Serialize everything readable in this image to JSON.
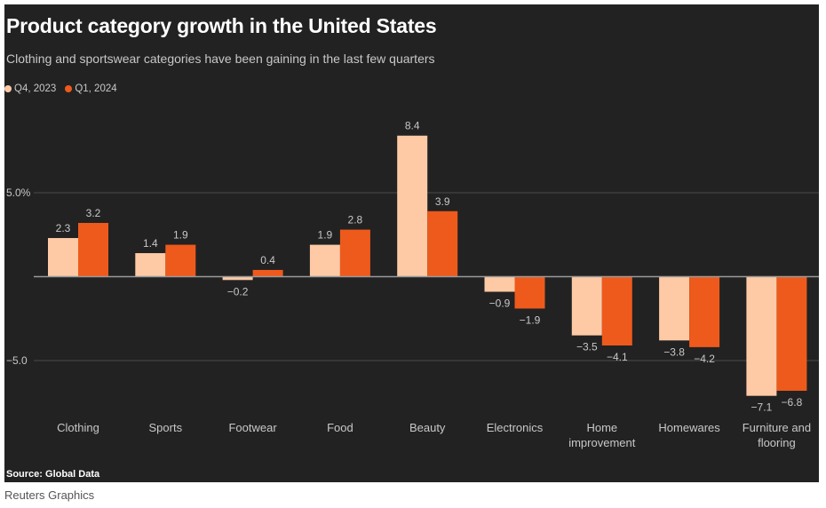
{
  "header": {
    "title": "Product category growth in the United States",
    "subtitle": "Clothing and sportswear categories have been gaining in the last few quarters"
  },
  "legend": [
    {
      "label": "Q4, 2023",
      "color": "#fecaa6"
    },
    {
      "label": "Q1, 2024",
      "color": "#ee5a1c"
    }
  ],
  "footer": {
    "source": "Source: Global Data",
    "credit": "Reuters Graphics"
  },
  "chart_data": {
    "type": "bar",
    "title": "Product category growth in the United States",
    "subtitle": "Clothing and sportswear categories have been gaining in the last few quarters",
    "xlabel": "",
    "ylabel": "",
    "categories": [
      [
        "Clothing"
      ],
      [
        "Sports"
      ],
      [
        "Footwear"
      ],
      [
        "Food"
      ],
      [
        "Beauty"
      ],
      [
        "Electronics"
      ],
      [
        "Home",
        "improvement"
      ],
      [
        "Homewares"
      ],
      [
        "Furniture and",
        "flooring"
      ]
    ],
    "series": [
      {
        "name": "Q4, 2023",
        "color": "#fecaa6",
        "values": [
          2.3,
          1.4,
          -0.2,
          1.9,
          8.4,
          -0.9,
          -3.5,
          -3.8,
          -7.1
        ]
      },
      {
        "name": "Q1, 2024",
        "color": "#ee5a1c",
        "values": [
          3.2,
          1.9,
          0.4,
          2.8,
          3.9,
          -1.9,
          -4.1,
          -4.2,
          -6.8
        ]
      }
    ],
    "value_labels": [
      [
        "2.3",
        "1.4",
        "−0.2",
        "1.9",
        "8.4",
        "−0.9",
        "−3.5",
        "−3.8",
        "−7.1"
      ],
      [
        "3.2",
        "1.9",
        "0.4",
        "2.8",
        "3.9",
        "−1.9",
        "−4.1",
        "−4.2",
        "−6.8"
      ]
    ],
    "yticks": [
      {
        "value": 5,
        "label": "5.0%"
      },
      {
        "value": -5,
        "label": "−5.0"
      }
    ],
    "ylim": [
      -7.5,
      8.8
    ],
    "grid": true,
    "legend_position": "top-left"
  }
}
